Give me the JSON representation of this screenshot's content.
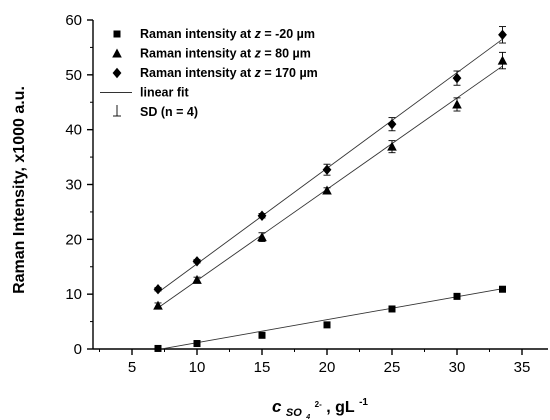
{
  "chart_data": {
    "type": "scatter",
    "title": "",
    "ylabel": "Raman Intensity, x1000 a.u.",
    "xlabel": {
      "symbol": "c",
      "subscript": "SO",
      "sub_sub": "4",
      "superscript": "2-",
      "unit": ", gL",
      "unit_sup": "-1"
    },
    "xlim": [
      2,
      37
    ],
    "ylim": [
      0,
      60
    ],
    "xticks": [
      5,
      10,
      15,
      20,
      25,
      30,
      35
    ],
    "yticks": [
      0,
      10,
      20,
      30,
      40,
      50,
      60
    ],
    "legend_position": "top-left",
    "series": [
      {
        "name": "Raman intensity at z = -20 µm",
        "legend_parts": [
          "Raman intensity at ",
          "z",
          " = -20 µm"
        ],
        "marker": "square",
        "x": [
          7,
          10,
          15,
          20,
          25,
          30,
          33.5
        ],
        "y": [
          0.1,
          1.0,
          2.5,
          4.4,
          7.3,
          9.6,
          10.9
        ],
        "err": [
          0.3,
          0.3,
          0.3,
          0.4,
          0.4,
          0.5,
          0.5
        ],
        "fit": [
          [
            7,
            -0.1
          ],
          [
            33.5,
            11.0
          ]
        ]
      },
      {
        "name": "Raman intensity at z = 80 µm",
        "legend_parts": [
          "Raman intensity at ",
          "z",
          " = 80 µm"
        ],
        "marker": "triangle",
        "x": [
          7,
          10,
          15,
          20,
          25,
          30,
          33.5
        ],
        "y": [
          7.9,
          12.6,
          20.4,
          28.9,
          36.9,
          44.6,
          52.6
        ],
        "err": [
          0.5,
          0.5,
          0.8,
          0.5,
          1.1,
          1.2,
          1.5
        ],
        "fit": [
          [
            7,
            7.5
          ],
          [
            33.5,
            51.6
          ]
        ]
      },
      {
        "name": "Raman intensity at z = 170 µm",
        "legend_parts": [
          "Raman intensity at ",
          "z",
          " = 170 µm"
        ],
        "marker": "diamond",
        "x": [
          7,
          10,
          15,
          20,
          25,
          30,
          33.5
        ],
        "y": [
          10.9,
          16.0,
          24.3,
          32.7,
          41.0,
          49.4,
          57.3
        ],
        "err": [
          0.3,
          0.3,
          0.4,
          1.0,
          1.2,
          1.3,
          1.5
        ],
        "fit": [
          [
            7,
            10.3
          ],
          [
            33.5,
            56.5
          ]
        ]
      }
    ],
    "legend_extra": [
      {
        "name": "linear fit",
        "marker": "line"
      },
      {
        "name": "SD (n = 4)",
        "marker": "errorbar"
      }
    ]
  }
}
